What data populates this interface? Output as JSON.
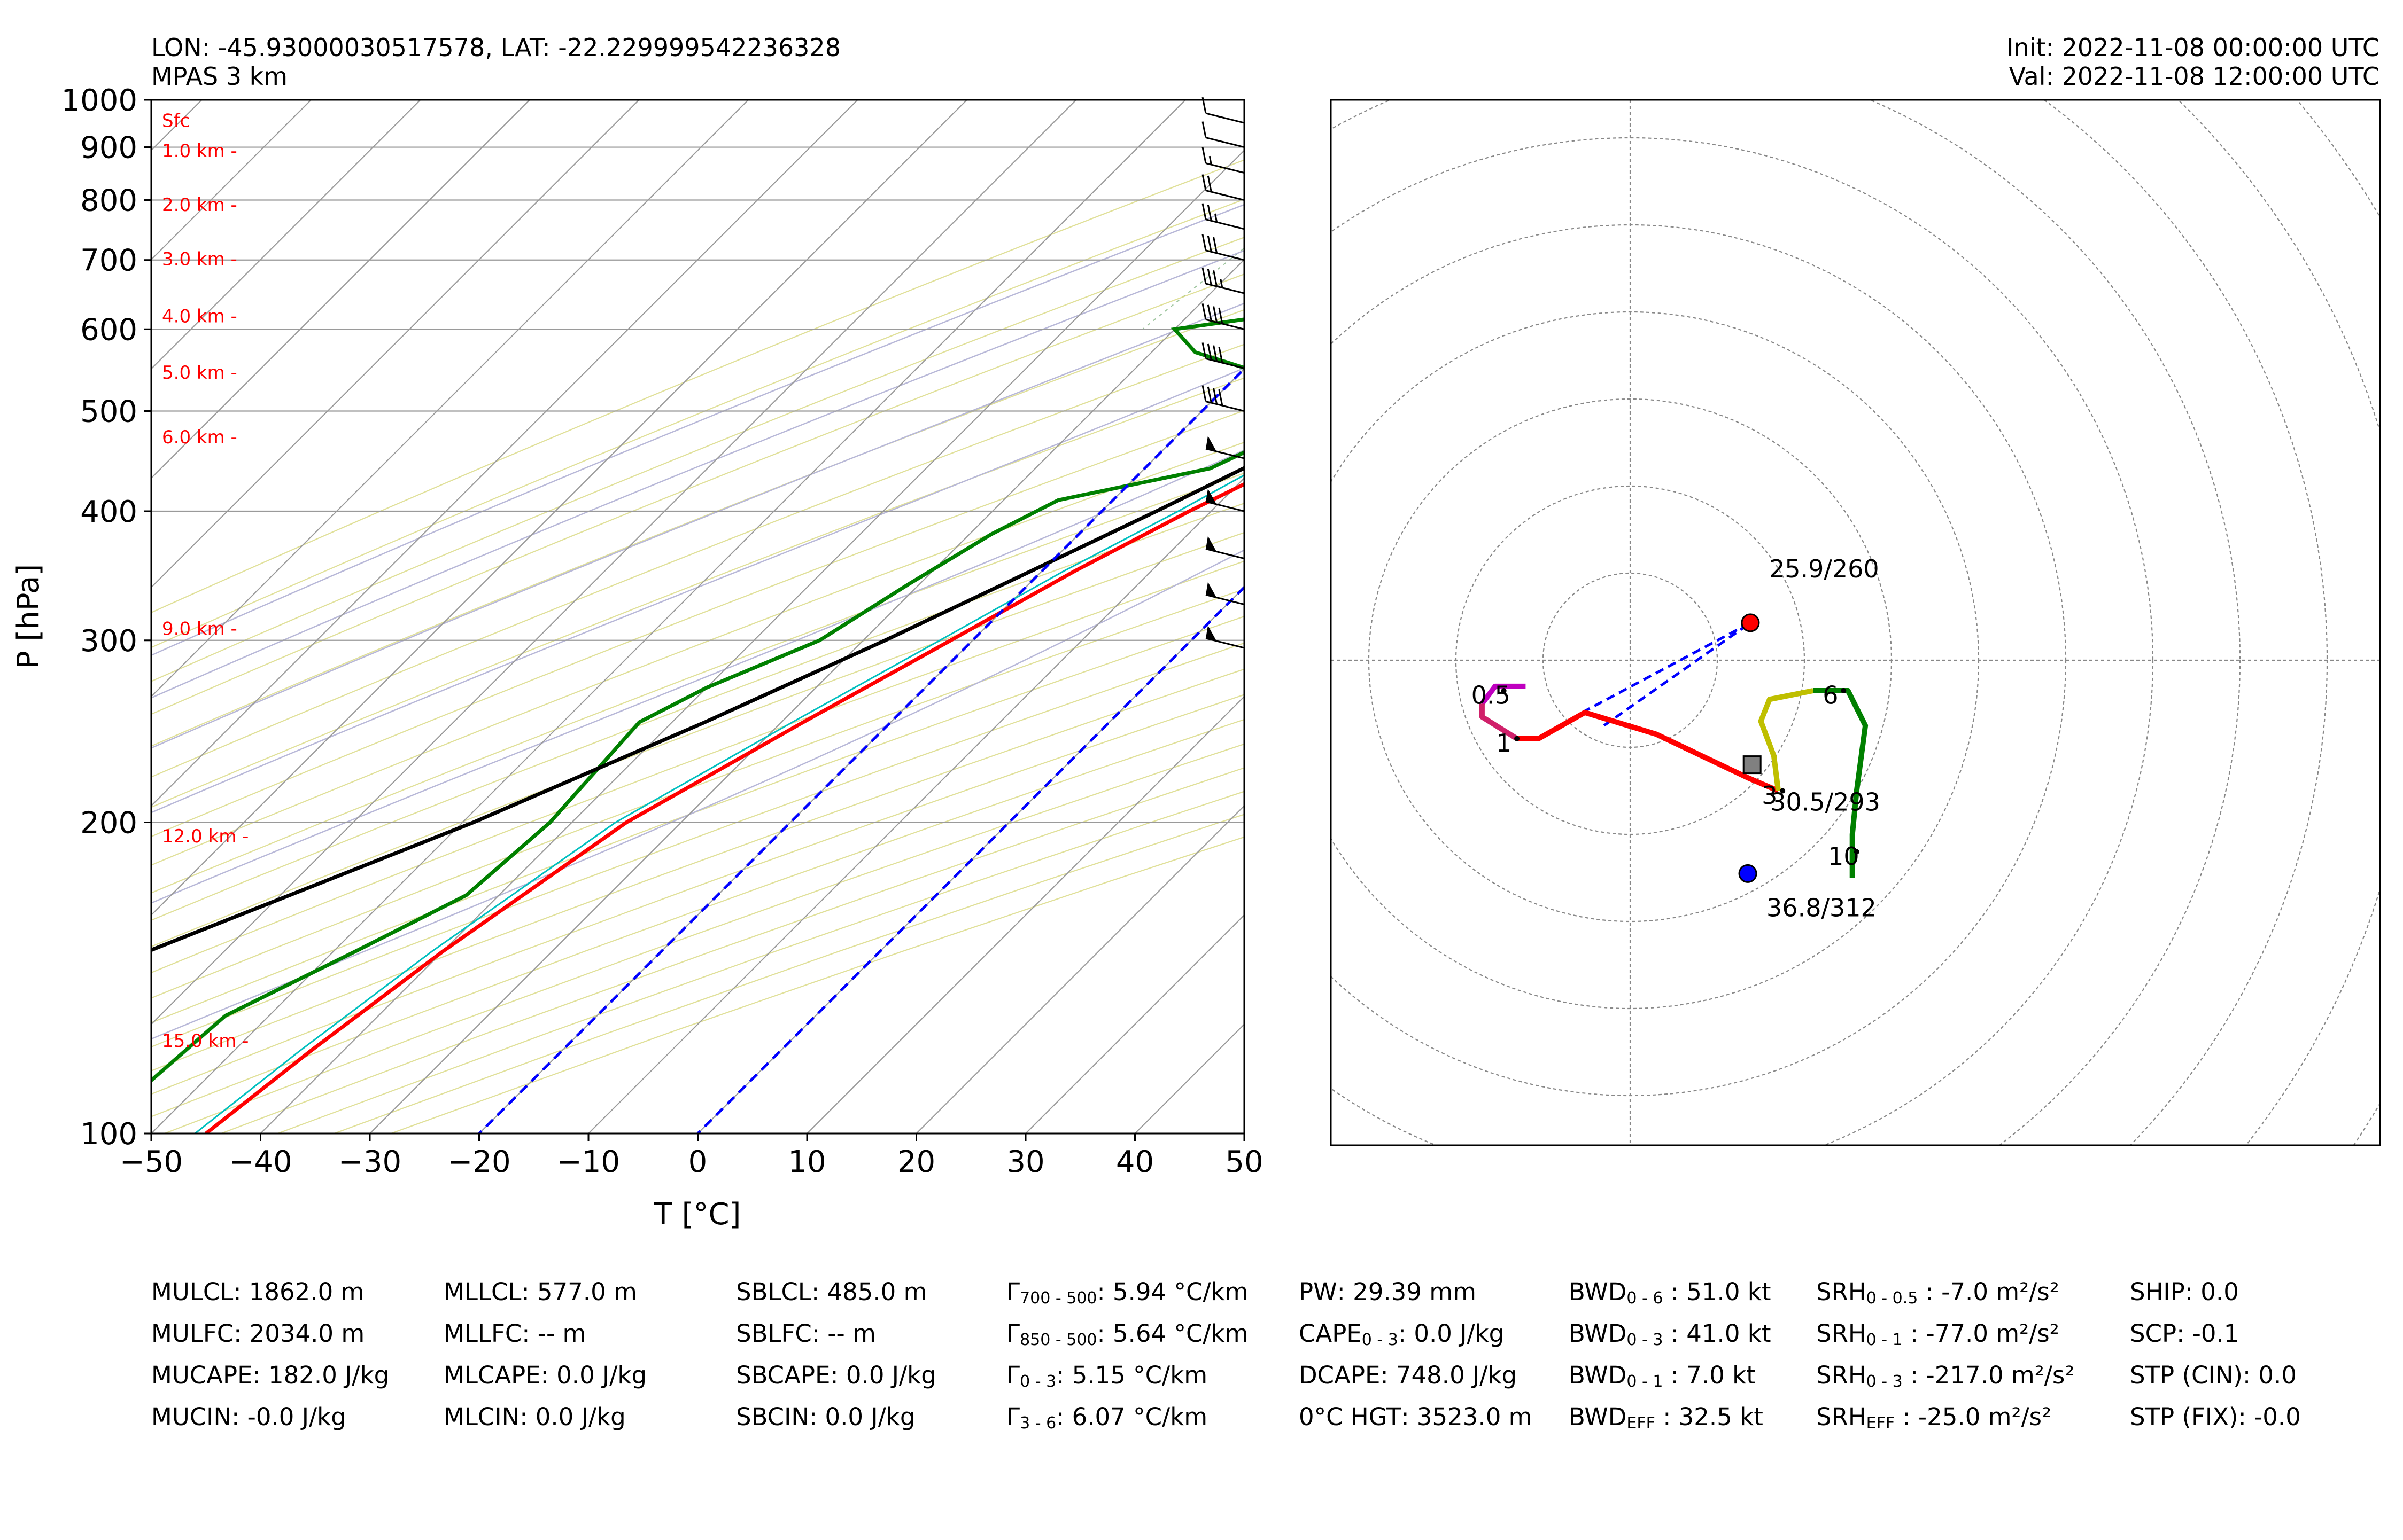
{
  "header": {
    "location": "LON: -45.93000030517578, LAT: -22.229999542236328",
    "model": "MPAS 3 km",
    "init": "Init: 2022-11-08 00:00:00 UTC",
    "valid": "Val: 2022-11-08 12:00:00 UTC"
  },
  "chart_data": [
    {
      "type": "line",
      "subtype": "skew-t",
      "xlabel": "T [°C]",
      "ylabel": "P [hPa]",
      "xlim": [
        -50,
        50
      ],
      "ylim": [
        1000,
        100
      ],
      "log_y": true,
      "x_ticks": [
        -50,
        -40,
        -30,
        -20,
        -10,
        0,
        10,
        20,
        30,
        40,
        50
      ],
      "x_tick_labels": [
        "−50",
        "−40",
        "−30",
        "−20",
        "−10",
        "0",
        "10",
        "20",
        "30",
        "40",
        "50"
      ],
      "y_ticks": [
        100,
        200,
        300,
        400,
        500,
        600,
        700,
        800,
        900,
        1000
      ],
      "y_tick_labels": [
        "100",
        "200",
        "300",
        "400",
        "500",
        "600",
        "700",
        "800",
        "900",
        "1000"
      ],
      "grid": true,
      "height_labels": [
        {
          "text": "15.0 km -",
          "p": 123
        },
        {
          "text": "12.0 km -",
          "p": 194
        },
        {
          "text": "9.0 km -",
          "p": 308
        },
        {
          "text": "6.0 km -",
          "p": 472
        },
        {
          "text": "5.0 km -",
          "p": 545
        },
        {
          "text": "4.0 km -",
          "p": 618
        },
        {
          "text": "3.0 km -",
          "p": 702
        },
        {
          "text": "2.0 km -",
          "p": 792
        },
        {
          "text": "1.0 km -",
          "p": 893
        },
        {
          "text": "Sfc",
          "p": 955
        }
      ],
      "series": [
        {
          "role": "temperature",
          "color": "#ff0000",
          "points": [
            [
              21.5,
              955
            ],
            [
              18,
              930
            ],
            [
              16.5,
              900
            ],
            [
              17,
              850
            ],
            [
              15,
              800
            ],
            [
              11,
              700
            ],
            [
              5,
              600
            ],
            [
              -2,
              500
            ],
            [
              -7,
              450
            ],
            [
              -12,
              400
            ],
            [
              -17,
              350
            ],
            [
              -22,
              300
            ],
            [
              -28,
              250
            ],
            [
              -35,
              200
            ],
            [
              -40,
              150
            ],
            [
              -43,
              120
            ],
            [
              -45,
              100
            ]
          ]
        },
        {
          "role": "virtual-temperature",
          "color": "#ff0000",
          "dashed": true,
          "points": [
            [
              22.5,
              955
            ],
            [
              19,
              930
            ],
            [
              17.5,
              900
            ],
            [
              18,
              850
            ],
            [
              16,
              800
            ],
            [
              12,
              700
            ],
            [
              5.5,
              600
            ],
            [
              -1.5,
              500
            ],
            [
              -7,
              450
            ]
          ]
        },
        {
          "role": "dewpoint",
          "color": "#008000",
          "points": [
            [
              15,
              955
            ],
            [
              15,
              920
            ],
            [
              16.5,
              880
            ],
            [
              14,
              800
            ],
            [
              9,
              750
            ],
            [
              5,
              700
            ],
            [
              -10,
              650
            ],
            [
              -30,
              600
            ],
            [
              -26,
              570
            ],
            [
              -12,
              525
            ],
            [
              -10,
              480
            ],
            [
              -14,
              440
            ],
            [
              -25,
              410
            ],
            [
              -28,
              380
            ],
            [
              -31,
              340
            ],
            [
              -34,
              300
            ],
            [
              -40,
              270
            ],
            [
              -43,
              250
            ],
            [
              -42,
              200
            ],
            [
              -43,
              170
            ],
            [
              -48,
              150
            ],
            [
              -54,
              130
            ],
            [
              -55,
              110
            ],
            [
              -55,
              100
            ]
          ]
        },
        {
          "role": "wetbulb",
          "color": "#00bfbf",
          "points": [
            [
              17,
              955
            ],
            [
              16.5,
              900
            ],
            [
              16,
              850
            ],
            [
              13,
              800
            ],
            [
              8,
              700
            ],
            [
              -6,
              650
            ],
            [
              -4,
              600
            ],
            [
              -5,
              500
            ],
            [
              -9,
              450
            ],
            [
              -13,
              400
            ],
            [
              -18,
              350
            ],
            [
              -23,
              300
            ],
            [
              -29,
              250
            ],
            [
              -36,
              200
            ],
            [
              -41,
              150
            ],
            [
              -44,
              120
            ],
            [
              -46,
              100
            ]
          ]
        },
        {
          "role": "parcel",
          "color": "#000000",
          "points": [
            [
              22,
              955
            ],
            [
              17.5,
              900
            ],
            [
              14.5,
              800
            ],
            [
              8.5,
              700
            ],
            [
              1,
              600
            ],
            [
              -6,
              500
            ],
            [
              -10,
              450
            ],
            [
              -15,
              400
            ],
            [
              -21,
              350
            ],
            [
              -28,
              300
            ],
            [
              -37,
              250
            ],
            [
              -49,
              200
            ],
            [
              -67,
              150
            ],
            [
              -83,
              120
            ],
            [
              -97,
              100
            ]
          ]
        },
        {
          "role": "downdraft",
          "color": "#bf00bf",
          "dashed": true,
          "points": [
            [
              13.5,
              940
            ],
            [
              12.5,
              900
            ],
            [
              10,
              800
            ],
            [
              7,
              700
            ],
            [
              2.5,
              620
            ],
            [
              2,
              580
            ]
          ]
        },
        {
          "role": "freezing-isotherm",
          "color": "#0000ff",
          "dashed": true,
          "points": [
            [
              0,
              1000
            ],
            [
              0,
              100
            ]
          ]
        },
        {
          "role": "-20-isotherm",
          "color": "#0000ff",
          "dashed": true,
          "points": [
            [
              -20,
              1000
            ],
            [
              -20,
              100
            ]
          ]
        }
      ],
      "wind_barbs": [
        {
          "p": 295,
          "kt": 50
        },
        {
          "p": 325,
          "kt": 50
        },
        {
          "p": 360,
          "kt": 50
        },
        {
          "p": 400,
          "kt": 50
        },
        {
          "p": 450,
          "kt": 50
        },
        {
          "p": 500,
          "kt": 40
        },
        {
          "p": 550,
          "kt": 40
        },
        {
          "p": 600,
          "kt": 40
        },
        {
          "p": 650,
          "kt": 35
        },
        {
          "p": 700,
          "kt": 30
        },
        {
          "p": 750,
          "kt": 25
        },
        {
          "p": 800,
          "kt": 20
        },
        {
          "p": 850,
          "kt": 15
        },
        {
          "p": 900,
          "kt": 10
        },
        {
          "p": 950,
          "kt": 10
        }
      ]
    },
    {
      "type": "line",
      "subtype": "hodograph",
      "grid": true,
      "rings_kt": [
        10,
        20,
        30,
        40,
        50,
        60,
        70,
        80,
        90,
        100
      ],
      "segments": [
        {
          "color": "#bf00bf",
          "points": [
            [
              -12,
              -3
            ],
            [
              -15.5,
              -3
            ],
            [
              -17,
              -5
            ]
          ]
        },
        {
          "color": "#d0206a",
          "points": [
            [
              -17,
              -5
            ],
            [
              -17,
              -6.5
            ],
            [
              -13,
              -9
            ]
          ]
        },
        {
          "color": "#ff0000",
          "points": [
            [
              -13,
              -9
            ],
            [
              -10.5,
              -9
            ],
            [
              -5.2,
              -6
            ],
            [
              3,
              -8.5
            ],
            [
              13.5,
              -13.5
            ],
            [
              17,
              -15
            ]
          ]
        },
        {
          "color": "#bfbf00",
          "points": [
            [
              17,
              -15
            ],
            [
              16.5,
              -11
            ],
            [
              15,
              -7
            ],
            [
              16,
              -4.5
            ],
            [
              21,
              -3.5
            ]
          ]
        },
        {
          "color": "#008000",
          "points": [
            [
              21,
              -3.5
            ],
            [
              25,
              -3.5
            ],
            [
              27,
              -7.5
            ],
            [
              26,
              -15
            ],
            [
              25.5,
              -20
            ],
            [
              25.5,
              -25
            ]
          ]
        }
      ],
      "height_labels": [
        {
          "text": "0.5",
          "u": -16,
          "v": -5
        },
        {
          "text": "1",
          "u": -14.5,
          "v": -10.5
        },
        {
          "text": "3",
          "u": 16,
          "v": -16.5
        },
        {
          "text": "6",
          "u": 23,
          "v": -5
        },
        {
          "text": "10",
          "u": 24.5,
          "v": -23.5
        }
      ],
      "storm_markers": [
        {
          "name": "right",
          "color": "#0000ff",
          "label": "36.8/312",
          "u": 13.5,
          "v": -24.5
        },
        {
          "name": "left",
          "color": "#ff0000",
          "label": "25.9/260",
          "u": 13.8,
          "v": 4.3
        },
        {
          "name": "mean",
          "color": "#808080",
          "label": "30.5/293",
          "u": 14,
          "v": -12
        }
      ],
      "shear_lines": [
        {
          "color": "#0000ff",
          "from": [
            -5.5,
            -6
          ],
          "to": [
            13.8,
            4.3
          ]
        },
        {
          "color": "#0000ff",
          "from": [
            -3,
            -7.5
          ],
          "to": [
            13.8,
            4.3
          ]
        }
      ]
    }
  ],
  "parameters": {
    "col1": [
      "MULCL: 1862.0 m",
      "MULFC: 2034.0 m",
      "MUCAPE: 182.0 J/kg",
      "MUCIN: -0.0 J/kg"
    ],
    "col2": [
      "MLLCL: 577.0 m",
      "MLLFC: -- m",
      "MLCAPE: 0.0 J/kg",
      "MLCIN: 0.0 J/kg"
    ],
    "col3": [
      "SBLCL: 485.0 m",
      "SBLFC: -- m",
      "SBCAPE: 0.0 J/kg",
      "SBCIN: 0.0 J/kg"
    ],
    "col4": [
      {
        "sym": "Γ",
        "sub": "700 - 500",
        "val": ": 5.94 °C/km"
      },
      {
        "sym": "Γ",
        "sub": "850 - 500",
        "val": ": 5.64 °C/km"
      },
      {
        "sym": "Γ",
        "sub": "0 - 3",
        "val": ": 5.15 °C/km"
      },
      {
        "sym": "Γ",
        "sub": "3 - 6",
        "val": ": 6.07 °C/km"
      }
    ],
    "col5": [
      {
        "sym": "PW",
        "sub": "",
        "val": ": 29.39 mm"
      },
      {
        "sym": "CAPE",
        "sub": "0 - 3",
        "val": ": 0.0 J/kg"
      },
      {
        "sym": "DCAPE",
        "sub": "",
        "val": ": 748.0 J/kg"
      },
      {
        "sym": "0°C HGT",
        "sub": "",
        "val": ": 3523.0 m"
      }
    ],
    "col6": [
      {
        "sym": "BWD",
        "sub": "0 - 6",
        "val": " : 51.0 kt"
      },
      {
        "sym": "BWD",
        "sub": "0 - 3",
        "val": " : 41.0 kt"
      },
      {
        "sym": "BWD",
        "sub": "0 - 1",
        "val": " : 7.0 kt"
      },
      {
        "sym": "BWD",
        "sub": "EFF",
        "val": " : 32.5 kt"
      }
    ],
    "col7": [
      {
        "sym": "SRH",
        "sub": "0 - 0.5",
        "val": " : -7.0 m²/s²"
      },
      {
        "sym": "SRH",
        "sub": "0 - 1",
        "val": " : -77.0 m²/s²"
      },
      {
        "sym": "SRH",
        "sub": "0 - 3",
        "val": " : -217.0 m²/s²"
      },
      {
        "sym": "SRH",
        "sub": "EFF",
        "val": " : -25.0 m²/s²"
      }
    ],
    "col8": [
      "SHIP: 0.0",
      "SCP: -0.1",
      "STP (CIN): 0.0",
      "STP (FIX): -0.0"
    ]
  }
}
